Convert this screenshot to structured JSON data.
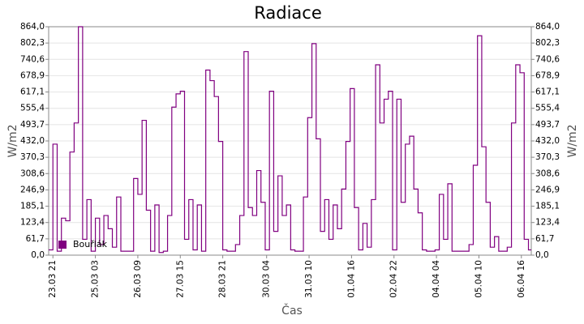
{
  "chart_data": {
    "type": "line",
    "step": true,
    "title": "Radiace",
    "xlabel": "Čas",
    "ylabel": "W/m2",
    "y2label": "W/m2",
    "x": [
      "23.03 18",
      "23.03 21",
      "24.03 00",
      "24.03 03",
      "24.03 06",
      "24.03 09",
      "24.03 12",
      "24.03 15",
      "24.03 18",
      "24.03 21",
      "25.03 00",
      "25.03 03",
      "25.03 06",
      "25.03 09",
      "25.03 12",
      "25.03 15",
      "25.03 18",
      "25.03 21",
      "26.03 00",
      "26.03 03",
      "26.03 06",
      "26.03 09",
      "26.03 12",
      "26.03 15",
      "26.03 18",
      "26.03 21",
      "27.03 00",
      "27.03 03",
      "27.03 06",
      "27.03 09",
      "27.03 12",
      "27.03 15",
      "27.03 18",
      "27.03 21",
      "28.03 00",
      "28.03 03",
      "28.03 06",
      "28.03 09",
      "28.03 12",
      "28.03 15",
      "28.03 18",
      "28.03 21",
      "29.03 00",
      "29.03 03",
      "29.03 06",
      "29.03 09",
      "29.03 12",
      "29.03 15",
      "29.03 18",
      "29.03 21",
      "30.03 00",
      "30.03 03",
      "30.03 06",
      "30.03 09",
      "30.03 12",
      "30.03 15",
      "30.03 18",
      "30.03 21",
      "31.03 00",
      "31.03 03",
      "31.03 06",
      "31.03 09",
      "31.03 12",
      "31.03 15",
      "31.03 18",
      "31.03 21",
      "01.04 00",
      "01.04 03",
      "01.04 06",
      "01.04 09",
      "01.04 12",
      "01.04 15",
      "01.04 18",
      "01.04 21",
      "02.04 00",
      "02.04 03",
      "02.04 06",
      "02.04 09",
      "02.04 12",
      "02.04 15",
      "02.04 18",
      "02.04 21",
      "03.04 00",
      "03.04 03",
      "03.04 06",
      "03.04 09",
      "03.04 12",
      "03.04 15",
      "03.04 18",
      "03.04 21",
      "04.04 00",
      "04.04 03",
      "04.04 06",
      "04.04 09",
      "04.04 12",
      "04.04 15",
      "04.04 18",
      "04.04 21",
      "05.04 00",
      "05.04 03",
      "05.04 06",
      "05.04 09",
      "05.04 12",
      "05.04 15",
      "05.04 18",
      "05.04 21",
      "06.04 00",
      "06.04 03",
      "06.04 06",
      "06.04 09",
      "06.04 12",
      "06.04 15",
      "06.04 18",
      "06.04 21"
    ],
    "series": [
      {
        "name": "Bouřlák",
        "color": "#800080",
        "values": [
          20,
          420,
          15,
          140,
          130,
          390,
          500,
          864,
          60,
          210,
          15,
          140,
          40,
          150,
          100,
          30,
          220,
          15,
          15,
          15,
          290,
          230,
          510,
          170,
          15,
          190,
          10,
          15,
          150,
          560,
          610,
          620,
          60,
          210,
          20,
          190,
          15,
          700,
          660,
          600,
          430,
          20,
          15,
          15,
          40,
          150,
          770,
          180,
          150,
          320,
          200,
          20,
          620,
          90,
          300,
          150,
          190,
          20,
          15,
          15,
          220,
          520,
          800,
          440,
          90,
          210,
          60,
          190,
          100,
          250,
          430,
          630,
          180,
          20,
          120,
          30,
          210,
          720,
          500,
          590,
          620,
          20,
          590,
          200,
          420,
          450,
          250,
          160,
          20,
          15,
          15,
          20,
          230,
          60,
          270,
          15,
          15,
          15,
          15,
          40,
          340,
          830,
          410,
          200,
          30,
          70,
          15,
          15,
          30,
          500,
          720,
          690,
          60,
          20
        ]
      }
    ],
    "xlim": [
      "23.03 18",
      "06.04 23"
    ],
    "xticks": [
      "23.03 21",
      "25.03 03",
      "26.03 09",
      "27.03 15",
      "28.03 21",
      "30.03 04",
      "31.03 10",
      "01.04 16",
      "02.04 22",
      "04.04 04",
      "05.04 10",
      "06.04 16"
    ],
    "ylim": [
      0,
      864
    ],
    "yticks": [
      {
        "value": 0,
        "label": "0,0"
      },
      {
        "value": 61.7,
        "label": "61,7"
      },
      {
        "value": 123.4,
        "label": "123,4"
      },
      {
        "value": 185.1,
        "label": "185,1"
      },
      {
        "value": 246.9,
        "label": "246,9"
      },
      {
        "value": 308.6,
        "label": "308,6"
      },
      {
        "value": 370.3,
        "label": "370,3"
      },
      {
        "value": 432.0,
        "label": "432,0"
      },
      {
        "value": 493.7,
        "label": "493,7"
      },
      {
        "value": 555.4,
        "label": "555,4"
      },
      {
        "value": 617.1,
        "label": "617,1"
      },
      {
        "value": 678.9,
        "label": "678,9"
      },
      {
        "value": 740.6,
        "label": "740,6"
      },
      {
        "value": 802.3,
        "label": "802,3"
      },
      {
        "value": 864,
        "label": "864,0"
      }
    ],
    "y2lim": [
      0,
      864
    ],
    "y2ticks": [
      {
        "value": 0,
        "label": "0,0"
      },
      {
        "value": 61.7,
        "label": "61,7"
      },
      {
        "value": 123.4,
        "label": "123,4"
      },
      {
        "value": 185.1,
        "label": "185,1"
      },
      {
        "value": 246.9,
        "label": "246,9"
      },
      {
        "value": 308.6,
        "label": "308,6"
      },
      {
        "value": 370.3,
        "label": "370,3"
      },
      {
        "value": 432.0,
        "label": "432,0"
      },
      {
        "value": 493.7,
        "label": "493,7"
      },
      {
        "value": 555.4,
        "label": "555,4"
      },
      {
        "value": 617.1,
        "label": "617,1"
      },
      {
        "value": 678.9,
        "label": "678,9"
      },
      {
        "value": 740.6,
        "label": "740,6"
      },
      {
        "value": 802.3,
        "label": "802,3"
      },
      {
        "value": 864,
        "label": "864,0"
      }
    ],
    "grid": true,
    "legend": "lower-left"
  }
}
